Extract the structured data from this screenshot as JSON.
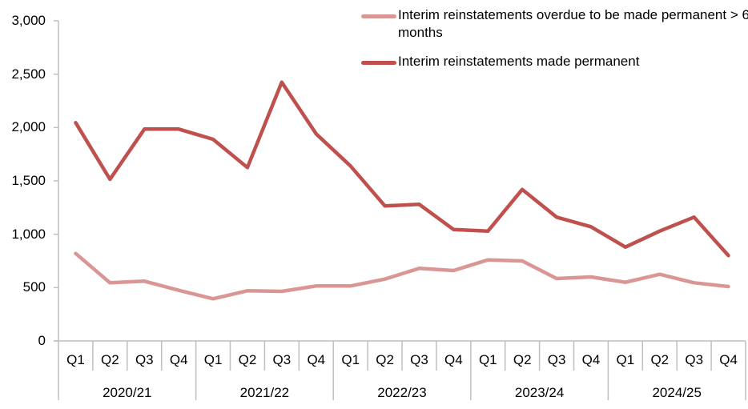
{
  "chart_data": {
    "type": "line",
    "title": "",
    "xlabel": "",
    "ylabel": "",
    "ylim": [
      0,
      3000
    ],
    "yticks": [
      0,
      500,
      1000,
      1500,
      2000,
      2500,
      3000
    ],
    "ytick_labels": [
      "0",
      "500",
      "1,000",
      "1,500",
      "2,000",
      "2,500",
      "3,000"
    ],
    "grid": false,
    "legend_position": "top-right",
    "groups": [
      "2020/21",
      "2021/22",
      "2022/23",
      "2023/24",
      "2024/25"
    ],
    "quarters": [
      "Q1",
      "Q2",
      "Q3",
      "Q4"
    ],
    "categories": [
      "2020/21 Q1",
      "2020/21 Q2",
      "2020/21 Q3",
      "2020/21 Q4",
      "2021/22 Q1",
      "2021/22 Q2",
      "2021/22 Q3",
      "2021/22 Q4",
      "2022/23 Q1",
      "2022/23 Q2",
      "2022/23 Q3",
      "2022/23 Q4",
      "2023/24 Q1",
      "2023/24 Q2",
      "2023/24 Q3",
      "2023/24 Q4",
      "2024/25 Q1",
      "2024/25 Q2",
      "2024/25 Q3",
      "2024/25 Q4"
    ],
    "series": [
      {
        "name": "Interim reinstatements overdue to be made permanent > 6 months",
        "color": "#DA9694",
        "values": [
          820,
          545,
          560,
          475,
          395,
          470,
          465,
          515,
          515,
          580,
          680,
          660,
          760,
          750,
          585,
          600,
          550,
          625,
          545,
          510
        ]
      },
      {
        "name": "Interim reinstatements made permanent",
        "color": "#C0504D",
        "values": [
          2045,
          1515,
          1985,
          1985,
          1890,
          1625,
          2425,
          1940,
          1640,
          1265,
          1280,
          1045,
          1030,
          1420,
          1160,
          1070,
          880,
          1030,
          1160,
          800
        ]
      }
    ]
  },
  "legend": {
    "items": [
      {
        "label": "Interim reinstatements overdue to be made permanent > 6 months",
        "color": "#DA9694"
      },
      {
        "label": "Interim reinstatements made permanent",
        "color": "#C0504D"
      }
    ]
  },
  "axis_color": "#BFBFBF"
}
